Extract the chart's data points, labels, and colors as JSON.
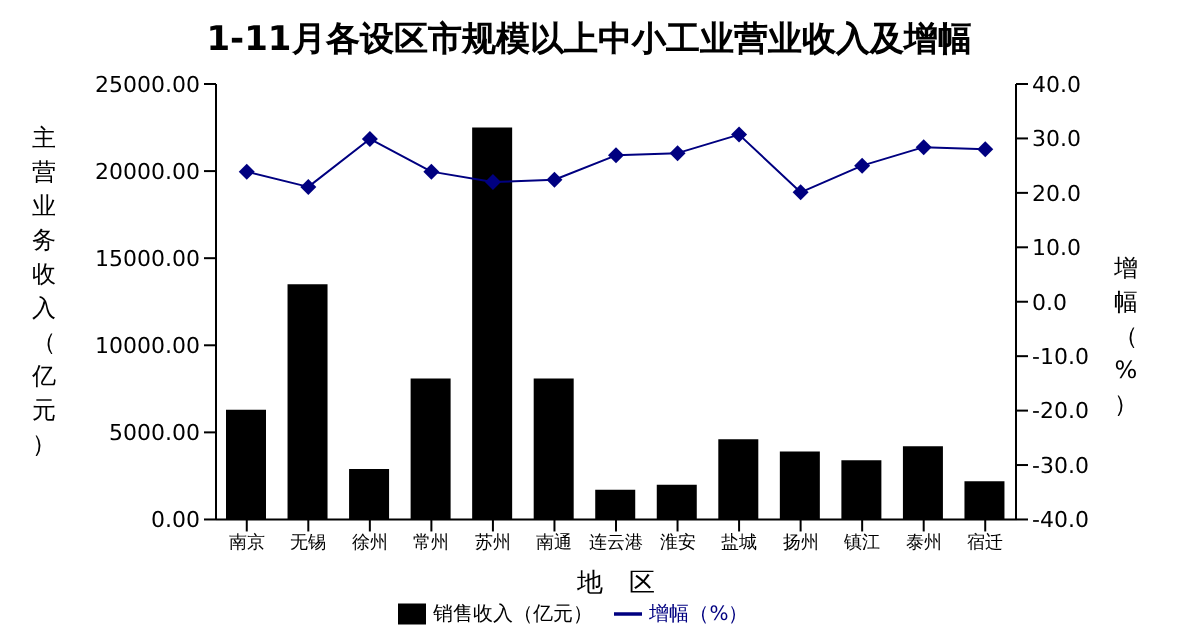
{
  "chart_data": {
    "type": "bar",
    "title": "1-11月各设区市规模以上中小工业营业收入及增幅",
    "xlabel": "地　区",
    "ylabel": "主营业务收入（亿元）",
    "y2label": "增幅（%）",
    "categories": [
      "南京",
      "无锡",
      "徐州",
      "常州",
      "苏州",
      "南通",
      "连云港",
      "淮安",
      "盐城",
      "扬州",
      "镇江",
      "泰州",
      "宿迁"
    ],
    "series": [
      {
        "name": "销售收入（亿元）",
        "color": "#000000",
        "values": [
          6300,
          13500,
          2900,
          8100,
          22500,
          8100,
          1700,
          2000,
          4600,
          3900,
          3400,
          4200,
          2200
        ]
      },
      {
        "name": "增幅（%）",
        "type": "line",
        "axis": "y2",
        "color": "#000080",
        "values": [
          23.9,
          21.1,
          29.9,
          23.9,
          22.0,
          22.4,
          26.9,
          27.3,
          30.7,
          20.1,
          25.0,
          28.4,
          28.0
        ]
      }
    ],
    "ylim": [
      0,
      25000
    ],
    "yticks": [
      {
        "value": 0,
        "label": "0.00"
      },
      {
        "value": 5000,
        "label": "5000.00"
      },
      {
        "value": 10000,
        "label": "10000.00"
      },
      {
        "value": 15000,
        "label": "15000.00"
      },
      {
        "value": 20000,
        "label": "20000.00"
      },
      {
        "value": 25000,
        "label": "25000.00"
      }
    ],
    "y2lim": [
      -40,
      40
    ],
    "y2ticks": [
      {
        "value": -40,
        "label": "-40.0"
      },
      {
        "value": -30,
        "label": "-30.0"
      },
      {
        "value": -20,
        "label": "-20.0"
      },
      {
        "value": -10,
        "label": "-10.0"
      },
      {
        "value": 0,
        "label": "0.0"
      },
      {
        "value": 10,
        "label": "10.0"
      },
      {
        "value": 20,
        "label": "20.0"
      },
      {
        "value": 30,
        "label": "30.0"
      },
      {
        "value": 40,
        "label": "40.0"
      }
    ],
    "marker": "diamond",
    "legend": "bottom",
    "grid": false
  }
}
